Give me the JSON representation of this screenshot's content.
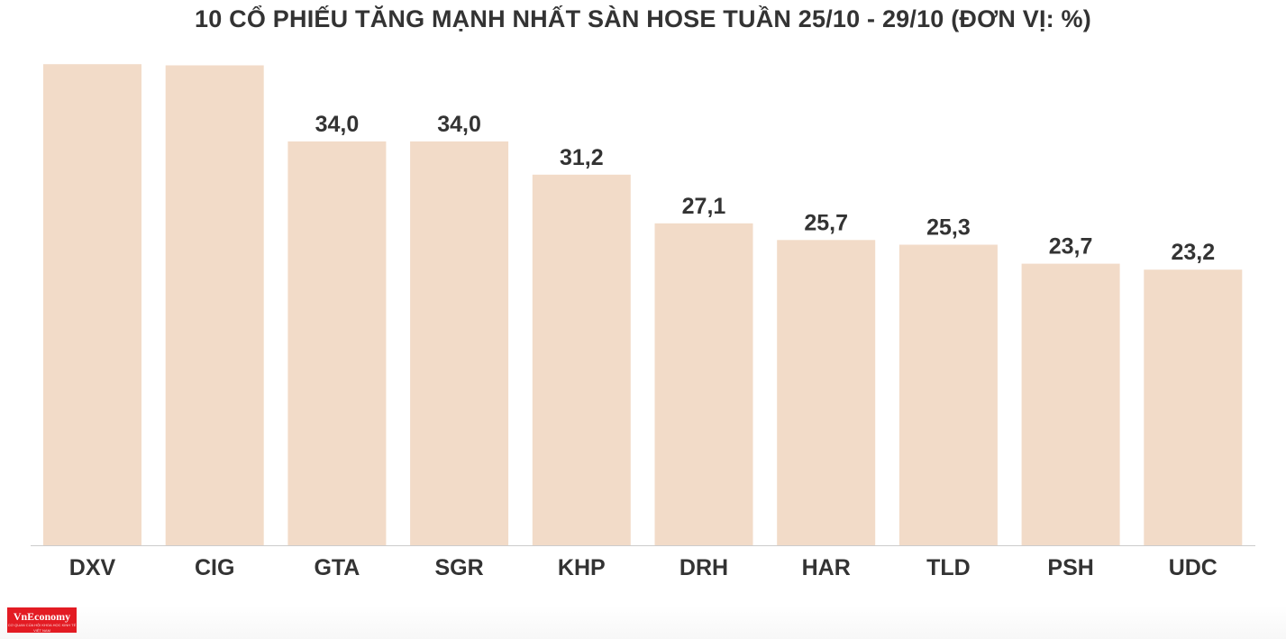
{
  "title": "10 CỔ PHIẾU TĂNG MẠNH NHẤT SÀN HOSE TUẦN 25/10 - 29/10 (ĐƠN VỊ: %)",
  "logo": {
    "name": "VnEconomy",
    "tagline": "CƠ QUAN CỦA HỘI KHOA HỌC KINH TẾ VIỆT NAM"
  },
  "colors": {
    "bar": "#f2dbc8",
    "axis": "#cccccc",
    "text": "#333333",
    "brand": "#e31b23"
  },
  "chart_data": {
    "type": "bar",
    "title": "10 CỔ PHIẾU TĂNG MẠNH NHẤT SÀN HOSE TUẦN 25/10 - 29/10 (ĐƠN VỊ: %)",
    "categories": [
      "DXV",
      "CIG",
      "GTA",
      "SGR",
      "KHP",
      "DRH",
      "HAR",
      "TLD",
      "PSH",
      "UDC"
    ],
    "values": [
      40.5,
      40.4,
      34.0,
      34.0,
      31.2,
      27.1,
      25.7,
      25.3,
      23.7,
      23.2
    ],
    "labels": [
      "",
      "",
      "34,0",
      "34,0",
      "31,2",
      "27,1",
      "25,7",
      "25,3",
      "23,7",
      "23,2"
    ],
    "xlabel": "",
    "ylabel": "",
    "ylim": [
      0,
      42
    ],
    "grid": false,
    "legend": "none"
  }
}
